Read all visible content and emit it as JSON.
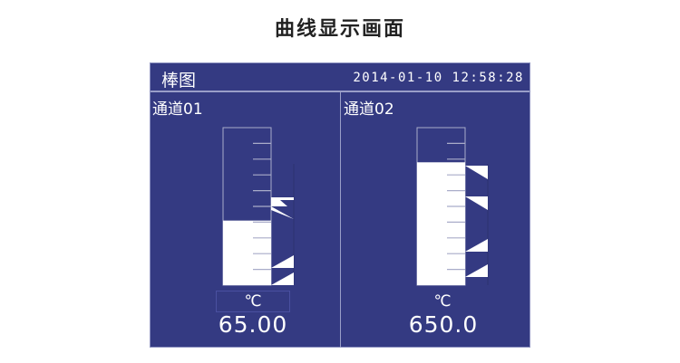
{
  "page_title": "曲线显示画面",
  "screen": {
    "title": "棒图",
    "datetime": "2014-01-10 12:58:28",
    "colors": {
      "background": "#343a82",
      "bar_fill": "#ffffff",
      "tick": "#a9acc9"
    }
  },
  "channels": [
    {
      "label": "通道01",
      "unit": "℃",
      "value": "65.00",
      "fill_fraction": 0.41
    },
    {
      "label": "通道02",
      "unit": "℃",
      "value": "650.0",
      "fill_fraction": 0.78
    }
  ]
}
